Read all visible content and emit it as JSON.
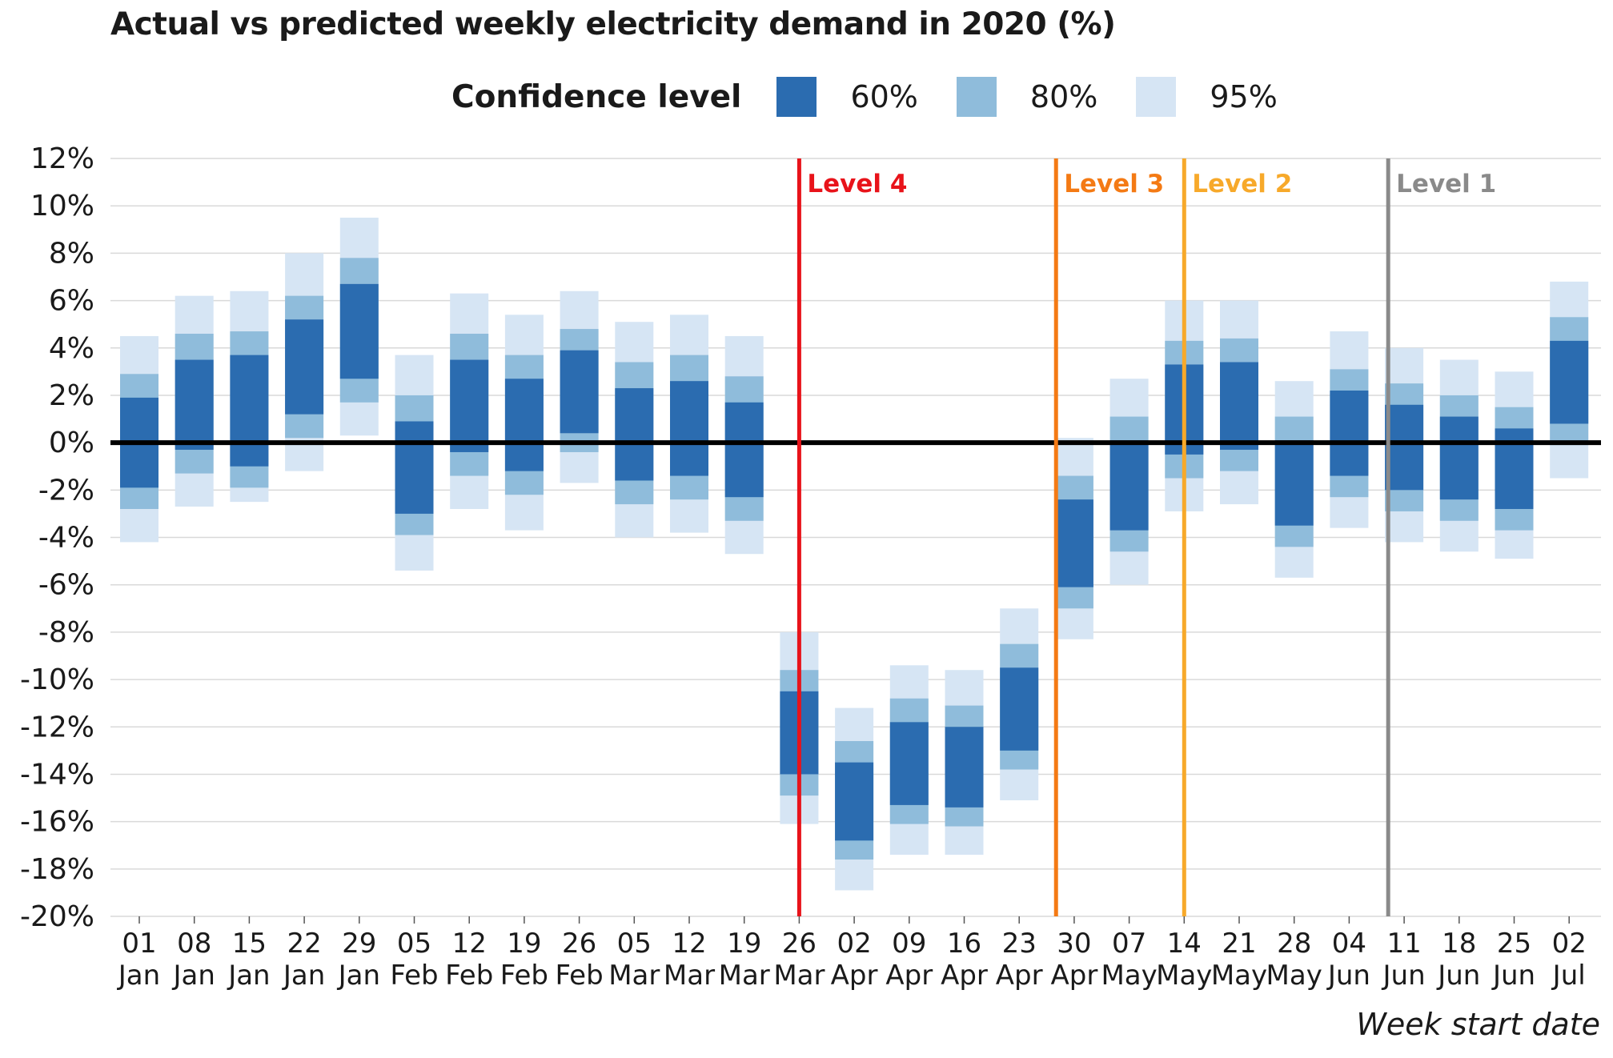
{
  "chart_data": {
    "type": "bar",
    "title": "Actual vs predicted weekly electricity demand in 2020 (%)",
    "xlabel": "Week start date",
    "ylabel": "",
    "ylim": [
      -20,
      12
    ],
    "yticks": [
      12,
      10,
      8,
      6,
      4,
      2,
      0,
      -2,
      -4,
      -6,
      -8,
      -10,
      -12,
      -14,
      -16,
      -18,
      -20
    ],
    "ytick_labels": [
      "12%",
      "10%",
      "8%",
      "6%",
      "4%",
      "2%",
      "0%",
      "-2%",
      "-4%",
      "-6%",
      "-8%",
      "-10%",
      "-12%",
      "-14%",
      "-16%",
      "-18%",
      "-20%"
    ],
    "grid": true,
    "legend": {
      "title": "Confidence level",
      "placement": "top",
      "items": [
        {
          "label": "60%",
          "color": "#2b6cb0"
        },
        {
          "label": "80%",
          "color": "#8fbcdb"
        },
        {
          "label": "95%",
          "color": "#d6e5f4"
        }
      ]
    },
    "categories": [
      {
        "day": "01",
        "month": "Jan"
      },
      {
        "day": "08",
        "month": "Jan"
      },
      {
        "day": "15",
        "month": "Jan"
      },
      {
        "day": "22",
        "month": "Jan"
      },
      {
        "day": "29",
        "month": "Jan"
      },
      {
        "day": "05",
        "month": "Feb"
      },
      {
        "day": "12",
        "month": "Feb"
      },
      {
        "day": "19",
        "month": "Feb"
      },
      {
        "day": "26",
        "month": "Feb"
      },
      {
        "day": "05",
        "month": "Mar"
      },
      {
        "day": "12",
        "month": "Mar"
      },
      {
        "day": "19",
        "month": "Mar"
      },
      {
        "day": "26",
        "month": "Mar"
      },
      {
        "day": "02",
        "month": "Apr"
      },
      {
        "day": "09",
        "month": "Apr"
      },
      {
        "day": "16",
        "month": "Apr"
      },
      {
        "day": "23",
        "month": "Apr"
      },
      {
        "day": "30",
        "month": "Apr"
      },
      {
        "day": "07",
        "month": "May"
      },
      {
        "day": "14",
        "month": "May"
      },
      {
        "day": "21",
        "month": "May"
      },
      {
        "day": "28",
        "month": "May"
      },
      {
        "day": "04",
        "month": "Jun"
      },
      {
        "day": "11",
        "month": "Jun"
      },
      {
        "day": "18",
        "month": "Jun"
      },
      {
        "day": "25",
        "month": "Jun"
      },
      {
        "day": "02",
        "month": "Jul"
      }
    ],
    "intervals": {
      "ci60": [
        [
          -1.9,
          1.9
        ],
        [
          -0.3,
          3.5
        ],
        [
          -1.0,
          3.7
        ],
        [
          1.2,
          5.2
        ],
        [
          2.7,
          6.7
        ],
        [
          -3.0,
          0.9
        ],
        [
          -0.4,
          3.5
        ],
        [
          -1.2,
          2.7
        ],
        [
          0.4,
          3.9
        ],
        [
          -1.6,
          2.3
        ],
        [
          -1.4,
          2.6
        ],
        [
          -2.3,
          1.7
        ],
        [
          -14.0,
          -10.5
        ],
        [
          -16.8,
          -13.5
        ],
        [
          -15.3,
          -11.8
        ],
        [
          -15.4,
          -12.0
        ],
        [
          -13.0,
          -9.5
        ],
        [
          -6.1,
          -2.4
        ],
        [
          -3.7,
          0.1
        ],
        [
          -0.5,
          3.3
        ],
        [
          -0.3,
          3.4
        ],
        [
          -3.5,
          0.1
        ],
        [
          -1.4,
          2.2
        ],
        [
          -2.0,
          1.6
        ],
        [
          -2.4,
          1.1
        ],
        [
          -2.8,
          0.6
        ],
        [
          0.8,
          4.3
        ]
      ],
      "ci80": [
        [
          -2.8,
          2.9
        ],
        [
          -1.3,
          4.6
        ],
        [
          -1.9,
          4.7
        ],
        [
          0.2,
          6.2
        ],
        [
          1.7,
          7.8
        ],
        [
          -3.9,
          2.0
        ],
        [
          -1.4,
          4.6
        ],
        [
          -2.2,
          3.7
        ],
        [
          -0.4,
          4.8
        ],
        [
          -2.6,
          3.4
        ],
        [
          -2.4,
          3.7
        ],
        [
          -3.3,
          2.8
        ],
        [
          -14.9,
          -9.6
        ],
        [
          -17.6,
          -12.6
        ],
        [
          -16.1,
          -10.8
        ],
        [
          -16.2,
          -11.1
        ],
        [
          -13.8,
          -8.5
        ],
        [
          -7.0,
          -1.4
        ],
        [
          -4.6,
          1.1
        ],
        [
          -1.5,
          4.3
        ],
        [
          -1.2,
          4.4
        ],
        [
          -4.4,
          1.1
        ],
        [
          -2.3,
          3.1
        ],
        [
          -2.9,
          2.5
        ],
        [
          -3.3,
          2.0
        ],
        [
          -3.7,
          1.5
        ],
        [
          -0.1,
          5.3
        ]
      ],
      "ci95": [
        [
          -4.2,
          4.5
        ],
        [
          -2.7,
          6.2
        ],
        [
          -2.5,
          6.4
        ],
        [
          -1.2,
          8.0
        ],
        [
          0.3,
          9.5
        ],
        [
          -5.4,
          3.7
        ],
        [
          -2.8,
          6.3
        ],
        [
          -3.7,
          5.4
        ],
        [
          -1.7,
          6.4
        ],
        [
          -4.0,
          5.1
        ],
        [
          -3.8,
          5.4
        ],
        [
          -4.7,
          4.5
        ],
        [
          -16.1,
          -8.0
        ],
        [
          -18.9,
          -11.2
        ],
        [
          -17.4,
          -9.4
        ],
        [
          -17.4,
          -9.6
        ],
        [
          -15.1,
          -7.0
        ],
        [
          -8.3,
          0.2
        ],
        [
          -6.0,
          2.7
        ],
        [
          -2.9,
          6.0
        ],
        [
          -2.6,
          6.0
        ],
        [
          -5.7,
          2.6
        ],
        [
          -3.6,
          4.7
        ],
        [
          -4.2,
          4.0
        ],
        [
          -4.6,
          3.5
        ],
        [
          -4.9,
          3.0
        ],
        [
          -1.5,
          6.8
        ]
      ]
    },
    "annotations": [
      {
        "label": "Level 4",
        "at_category": 12,
        "color": "#e8131a"
      },
      {
        "label": "Level 3",
        "at_category": 16.67,
        "color": "#f47a14"
      },
      {
        "label": "Level 2",
        "at_category": 19,
        "color": "#f7a92a"
      },
      {
        "label": "Level 1",
        "at_category": 22.71,
        "color": "#8a8a8a"
      }
    ]
  }
}
